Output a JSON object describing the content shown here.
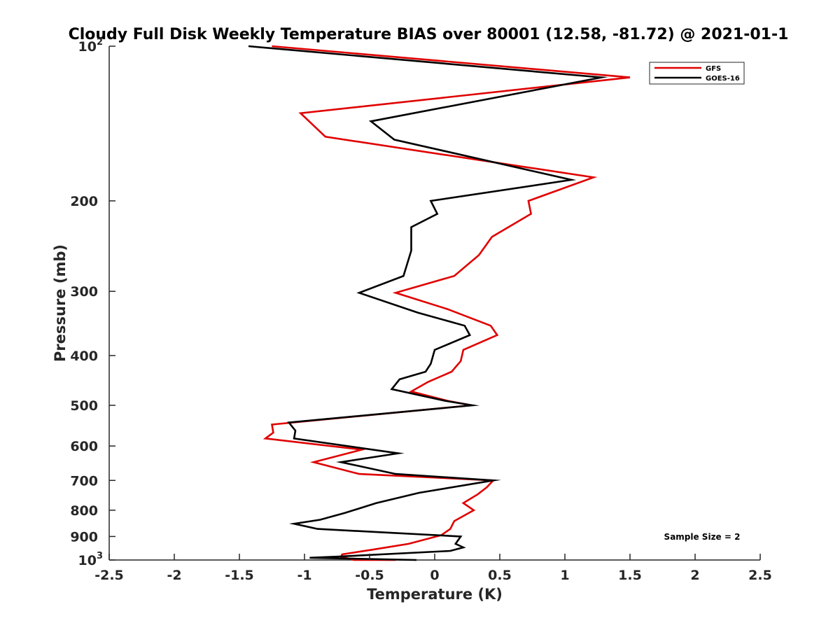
{
  "chart_data": {
    "type": "line",
    "title": "Cloudy Full Disk Weekly Temperature BIAS over 80001 (12.58, -81.72) @ 2021-01-1",
    "xlabel": "Temperature (K)",
    "ylabel": "Pressure (mb)",
    "xlim": [
      -2.5,
      2.5
    ],
    "ylim": [
      100,
      1000
    ],
    "y_scale": "log",
    "y_reversed": true,
    "grid": false,
    "legend_position": "top-right",
    "x_ticks": [
      -2.5,
      -2,
      -1.5,
      -1,
      -0.5,
      0,
      0.5,
      1,
      1.5,
      2,
      2.5
    ],
    "x_tick_labels": [
      "-2.5",
      "-2",
      "-1.5",
      "-1",
      "-0.5",
      "0",
      "0.5",
      "1",
      "1.5",
      "2",
      "2.5"
    ],
    "y_ticks": [
      100,
      200,
      300,
      400,
      500,
      600,
      700,
      800,
      900,
      1000
    ],
    "y_tick_labels": [
      {
        "base": "10",
        "exp": "2"
      },
      {
        "base": "200",
        "exp": ""
      },
      {
        "base": "300",
        "exp": ""
      },
      {
        "base": "400",
        "exp": ""
      },
      {
        "base": "500",
        "exp": ""
      },
      {
        "base": "600",
        "exp": ""
      },
      {
        "base": "700",
        "exp": ""
      },
      {
        "base": "800",
        "exp": ""
      },
      {
        "base": "900",
        "exp": ""
      },
      {
        "base": "10",
        "exp": "3"
      }
    ],
    "annotation": "Sample Size = 2",
    "series": [
      {
        "name": "GFS",
        "color": "#e00000",
        "points": [
          [
            -1.25,
            100
          ],
          [
            1.5,
            115
          ],
          [
            -1.03,
            135
          ],
          [
            -0.84,
            150
          ],
          [
            1.22,
            180
          ],
          [
            0.72,
            200
          ],
          [
            0.74,
            212
          ],
          [
            0.44,
            235
          ],
          [
            0.34,
            255
          ],
          [
            0.15,
            280
          ],
          [
            -0.3,
            302
          ],
          [
            0.1,
            325
          ],
          [
            0.43,
            350
          ],
          [
            0.48,
            365
          ],
          [
            0.22,
            390
          ],
          [
            0.2,
            410
          ],
          [
            0.13,
            430
          ],
          [
            -0.05,
            450
          ],
          [
            -0.18,
            470
          ],
          [
            0.1,
            490
          ],
          [
            0.28,
            500
          ],
          [
            -1.25,
            545
          ],
          [
            -1.24,
            565
          ],
          [
            -1.3,
            580
          ],
          [
            -0.56,
            610
          ],
          [
            -0.93,
            645
          ],
          [
            -0.58,
            680
          ],
          [
            0.45,
            700
          ],
          [
            0.4,
            722
          ],
          [
            0.33,
            745
          ],
          [
            0.22,
            775
          ],
          [
            0.3,
            800
          ],
          [
            0.15,
            840
          ],
          [
            0.12,
            870
          ],
          [
            0.05,
            895
          ],
          [
            -0.2,
            930
          ],
          [
            -0.48,
            955
          ],
          [
            -0.71,
            975
          ],
          [
            -0.72,
            985
          ],
          [
            -0.62,
            1000
          ],
          [
            -0.3,
            1000
          ]
        ]
      },
      {
        "name": "GOES-16",
        "color": "#000000",
        "points": [
          [
            -1.43,
            100
          ],
          [
            1.28,
            115
          ],
          [
            -0.49,
            140
          ],
          [
            -0.31,
            152
          ],
          [
            1.05,
            182
          ],
          [
            -0.03,
            200
          ],
          [
            0.02,
            212
          ],
          [
            -0.18,
            225
          ],
          [
            -0.18,
            250
          ],
          [
            -0.24,
            280
          ],
          [
            -0.58,
            302
          ],
          [
            -0.13,
            330
          ],
          [
            0.23,
            350
          ],
          [
            0.27,
            365
          ],
          [
            0.0,
            390
          ],
          [
            -0.03,
            415
          ],
          [
            -0.07,
            430
          ],
          [
            -0.27,
            445
          ],
          [
            -0.33,
            465
          ],
          [
            0.08,
            490
          ],
          [
            0.29,
            500
          ],
          [
            -1.12,
            540
          ],
          [
            -1.07,
            560
          ],
          [
            -1.08,
            580
          ],
          [
            -0.28,
            620
          ],
          [
            -0.72,
            645
          ],
          [
            -0.3,
            680
          ],
          [
            0.45,
            700
          ],
          [
            -0.12,
            740
          ],
          [
            -0.45,
            775
          ],
          [
            -0.69,
            810
          ],
          [
            -0.88,
            835
          ],
          [
            -1.08,
            850
          ],
          [
            -0.9,
            870
          ],
          [
            0.2,
            900
          ],
          [
            0.16,
            930
          ],
          [
            0.22,
            945
          ],
          [
            0.12,
            960
          ],
          [
            -0.75,
            985
          ],
          [
            -0.96,
            990
          ],
          [
            -0.14,
            1000
          ]
        ]
      }
    ]
  }
}
